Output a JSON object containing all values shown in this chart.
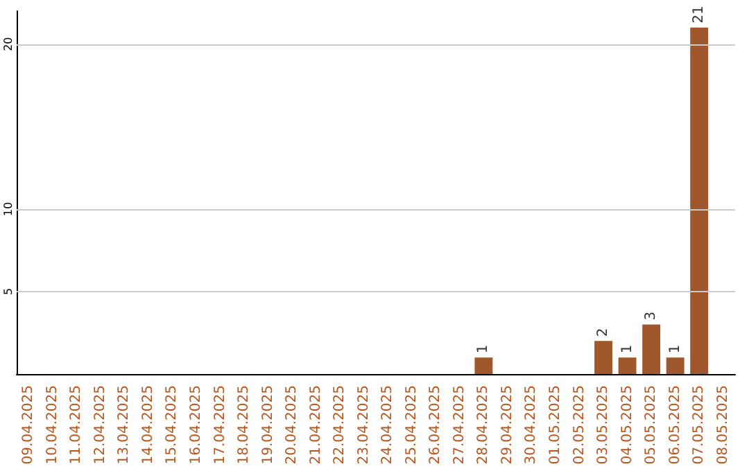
{
  "chart_data": {
    "type": "bar",
    "categories": [
      "09.04.2025",
      "10.04.2025",
      "11.04.2025",
      "12.04.2025",
      "13.04.2025",
      "14.04.2025",
      "15.04.2025",
      "16.04.2025",
      "17.04.2025",
      "18.04.2025",
      "19.04.2025",
      "20.04.2025",
      "21.04.2025",
      "22.04.2025",
      "23.04.2025",
      "24.04.2025",
      "25.04.2025",
      "26.04.2025",
      "27.04.2025",
      "28.04.2025",
      "29.04.2025",
      "30.04.2025",
      "01.05.2025",
      "02.05.2025",
      "03.05.2025",
      "04.05.2025",
      "05.05.2025",
      "06.05.2025",
      "07.05.2025",
      "08.05.2025"
    ],
    "values": [
      0,
      0,
      0,
      0,
      0,
      0,
      0,
      0,
      0,
      0,
      0,
      0,
      0,
      0,
      0,
      0,
      0,
      0,
      0,
      1,
      0,
      0,
      0,
      0,
      2,
      1,
      3,
      1,
      21,
      0
    ],
    "value_labels": [
      null,
      null,
      null,
      null,
      null,
      null,
      null,
      null,
      null,
      null,
      null,
      null,
      null,
      null,
      null,
      null,
      null,
      null,
      null,
      "1",
      null,
      null,
      null,
      null,
      "2",
      "1",
      "3",
      "1",
      "21",
      null
    ],
    "color": "#a0572c",
    "ylim": [
      0,
      22
    ],
    "yticks": [
      5,
      10,
      20
    ],
    "grid": "y"
  }
}
